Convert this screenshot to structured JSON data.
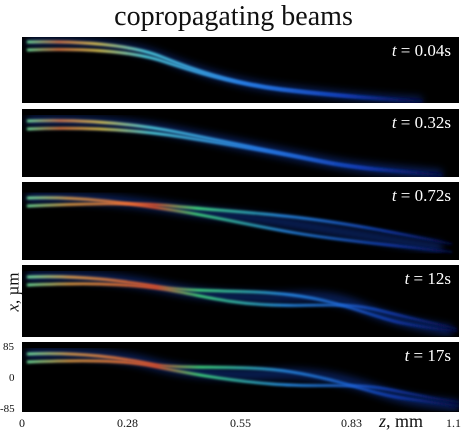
{
  "title": "copropagating beams",
  "panels": [
    {
      "t_var": "t",
      "t_text": " = 0.04s"
    },
    {
      "t_var": "t",
      "t_text": " = 0.32s"
    },
    {
      "t_var": "t",
      "t_text": " = 0.72s"
    },
    {
      "t_var": "t",
      "t_text": " = 12s"
    },
    {
      "t_var": "t",
      "t_text": " = 17s"
    }
  ],
  "axes": {
    "y_var": "x",
    "y_unit": ", µm",
    "y_ticks": [
      "85",
      "0",
      "-85"
    ],
    "z_var": "z",
    "z_unit": ", mm",
    "z_ticks": [
      "0",
      "0.28",
      "0.55",
      "0.83",
      "1.1"
    ]
  },
  "colors": {
    "background": "#000000",
    "colormap": "jet"
  }
}
